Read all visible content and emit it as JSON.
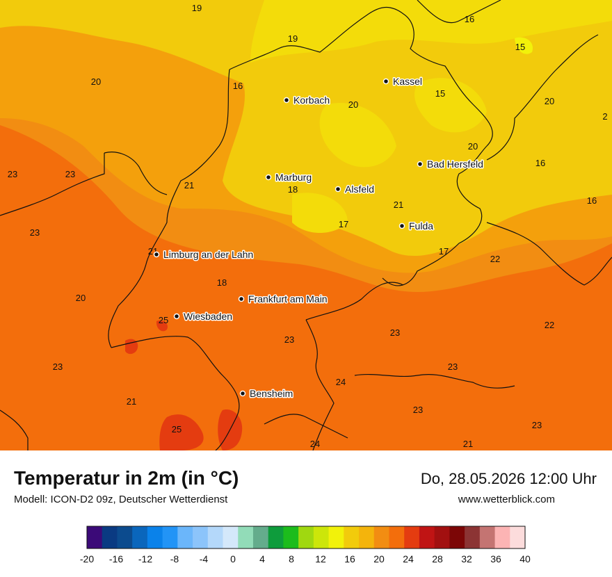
{
  "title": "Temperatur in 2m (in °C)",
  "model": "Modell: ICON-D2 09z, Deutscher Wetterdienst",
  "datetime": "Do, 28.05.2026 12:00 Uhr",
  "website": "www.wetterblick.com",
  "colors": {
    "warm_orange": "#f36e0c",
    "mid_orange": "#f28d12",
    "amber": "#f4a00c",
    "yellow": "#f2cb0c",
    "bright_yellow": "#f3dc0a",
    "hot_red": "#e43c10",
    "border": "#111111"
  },
  "cities": [
    {
      "name": "Kassel"
    },
    {
      "name": "Korbach"
    },
    {
      "name": "Bad Hersfeld"
    },
    {
      "name": "Marburg"
    },
    {
      "name": "Alsfeld"
    },
    {
      "name": "Fulda"
    },
    {
      "name": "Limburg an der Lahn"
    },
    {
      "name": "Frankfurt am Main"
    },
    {
      "name": "Wiesbaden"
    },
    {
      "name": "Bensheim"
    }
  ],
  "values": [
    "19",
    "19",
    "16",
    "15",
    "20",
    "16",
    "15",
    "20",
    "20",
    "2",
    "20",
    "16",
    "23",
    "23",
    "21",
    "18",
    "21",
    "16",
    "23",
    "17",
    "22",
    "21",
    "17",
    "18",
    "20",
    "25",
    "22",
    "23",
    "23",
    "23",
    "23",
    "24",
    "21",
    "23",
    "25",
    "24",
    "21",
    "23"
  ],
  "scale": {
    "ticks": [
      "-20",
      "-16",
      "-12",
      "-8",
      "-4",
      "0",
      "4",
      "8",
      "12",
      "16",
      "20",
      "24",
      "28",
      "32",
      "36",
      "40"
    ],
    "colors": [
      "#3b0a78",
      "#0a3a82",
      "#0c4b8e",
      "#0a66bc",
      "#0a82ea",
      "#2294f6",
      "#6bb6fa",
      "#8cc4fa",
      "#b4d8fa",
      "#d4e8fa",
      "#92dcb8",
      "#64ac8c",
      "#0e9c3c",
      "#1cbc1c",
      "#a0d810",
      "#cce60a",
      "#f2f20a",
      "#f2cb0c",
      "#f4b40c",
      "#f28d12",
      "#f36e0c",
      "#e43c10",
      "#c01414",
      "#a21010",
      "#7c0606",
      "#8c3434",
      "#c47472",
      "#fcb4b4",
      "#fcdcdc"
    ]
  }
}
